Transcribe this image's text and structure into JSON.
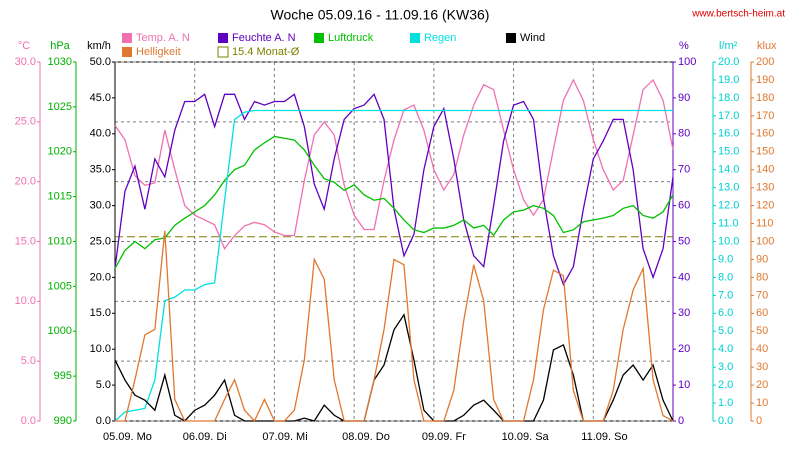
{
  "chart_data": {
    "type": "line",
    "title": "Woche 05.09.16 - 11.09.16 (KW36)",
    "source": "www.bertsch-heim.at",
    "grid": true,
    "x": [
      0,
      3,
      6,
      9,
      12,
      15,
      18,
      21,
      24,
      27,
      30,
      33,
      36,
      39,
      42,
      45,
      48,
      51,
      54,
      57,
      60,
      63,
      66,
      69,
      72,
      75,
      78,
      81,
      84,
      87,
      90,
      93,
      96,
      99,
      102,
      105,
      108,
      111,
      114,
      117,
      120,
      123,
      126,
      129,
      132,
      135,
      138,
      141,
      144,
      147,
      150,
      153,
      156,
      159,
      162,
      165,
      168
    ],
    "xlim": [
      0,
      168
    ],
    "xticks": [
      {
        "value": 0,
        "label": "05.09.  Mo"
      },
      {
        "value": 24,
        "label": "06.09.  Di"
      },
      {
        "value": 48,
        "label": "07.09.  Mi"
      },
      {
        "value": 72,
        "label": "08.09.  Do"
      },
      {
        "value": 96,
        "label": "09.09.  Fr"
      },
      {
        "value": 120,
        "label": "10.09.  Sa"
      },
      {
        "value": 144,
        "label": "11.09.  So"
      }
    ],
    "axes": [
      {
        "label": "°C",
        "color": "#f070b0",
        "side": "left",
        "lim": [
          0,
          30
        ],
        "ticks": [
          {
            "value": 0,
            "label": "0.0"
          },
          {
            "value": 5,
            "label": "5.0"
          },
          {
            "value": 10,
            "label": "10.0"
          },
          {
            "value": 15,
            "label": "15.0"
          },
          {
            "value": 20,
            "label": "20.0"
          },
          {
            "value": 25,
            "label": "25.0"
          },
          {
            "value": 30,
            "label": "30.0"
          }
        ]
      },
      {
        "label": "hPa",
        "color": "#00b000",
        "side": "left",
        "lim": [
          990,
          1030
        ],
        "ticks": [
          990,
          995,
          1000,
          1005,
          1010,
          1015,
          1020,
          1025,
          1030
        ]
      },
      {
        "label": "km/h",
        "color": "#000000",
        "side": "left",
        "lim": [
          0,
          50
        ],
        "ticks": [
          {
            "value": 0,
            "label": "0.0"
          },
          {
            "value": 5,
            "label": "5.0"
          },
          {
            "value": 10,
            "label": "10.0"
          },
          {
            "value": 15,
            "label": "15.0"
          },
          {
            "value": 20,
            "label": "20.0"
          },
          {
            "value": 25,
            "label": "25.0"
          },
          {
            "value": 30,
            "label": "30.0"
          },
          {
            "value": 35,
            "label": "35.0"
          },
          {
            "value": 40,
            "label": "40.0"
          },
          {
            "value": 45,
            "label": "45.0"
          },
          {
            "value": 50,
            "label": "50.0"
          }
        ]
      },
      {
        "label": "%",
        "color": "#6000c0",
        "side": "right",
        "lim": [
          0,
          100
        ],
        "ticks": [
          0,
          10,
          20,
          30,
          40,
          50,
          60,
          70,
          80,
          90,
          100
        ]
      },
      {
        "label": "l/m²",
        "color": "#00d0d0",
        "side": "right",
        "lim": [
          0,
          20
        ],
        "ticks": [
          {
            "value": 0,
            "label": "0.0"
          },
          {
            "value": 1,
            "label": "1.0"
          },
          {
            "value": 2,
            "label": "2.0"
          },
          {
            "value": 3,
            "label": "3.0"
          },
          {
            "value": 4,
            "label": "4.0"
          },
          {
            "value": 5,
            "label": "5.0"
          },
          {
            "value": 6,
            "label": "6.0"
          },
          {
            "value": 7,
            "label": "7.0"
          },
          {
            "value": 8,
            "label": "8.0"
          },
          {
            "value": 9,
            "label": "9.0"
          },
          {
            "value": 10,
            "label": "10.0"
          },
          {
            "value": 11,
            "label": "11.0"
          },
          {
            "value": 12,
            "label": "12.0"
          },
          {
            "value": 13,
            "label": "13.0"
          },
          {
            "value": 14,
            "label": "14.0"
          },
          {
            "value": 15,
            "label": "15.0"
          },
          {
            "value": 16,
            "label": "16.0"
          },
          {
            "value": 17,
            "label": "17.0"
          },
          {
            "value": 18,
            "label": "18.0"
          },
          {
            "value": 19,
            "label": "19.0"
          },
          {
            "value": 20,
            "label": "20.0"
          }
        ]
      },
      {
        "label": "klux",
        "color": "#e07830",
        "side": "right",
        "lim": [
          0,
          200
        ],
        "ticks": [
          0,
          10,
          20,
          30,
          40,
          50,
          60,
          70,
          80,
          90,
          100,
          110,
          120,
          130,
          140,
          150,
          160,
          170,
          180,
          190,
          200
        ]
      }
    ],
    "series": [
      {
        "name": "Temp. A. N",
        "color": "#f070b0",
        "axis": "°C",
        "values": [
          24.7,
          23.5,
          20.5,
          19.7,
          19.9,
          24.3,
          21,
          18,
          17.2,
          16.8,
          16.4,
          14.4,
          15.5,
          16.3,
          16.6,
          16.4,
          15.8,
          15.5,
          15.5,
          20.1,
          23.9,
          25,
          23.9,
          19.7,
          17.2,
          16,
          16,
          20.1,
          23.5,
          26,
          26.4,
          24.3,
          21,
          19.3,
          20.6,
          23.9,
          26.4,
          28.1,
          27.7,
          24.3,
          21,
          18.5,
          17.2,
          18.5,
          22.7,
          26.8,
          28.5,
          26.8,
          23.5,
          21,
          19.3,
          20.1,
          23.9,
          27.7,
          28.5,
          26.8,
          22.7
        ]
      },
      {
        "name": "Feuchte A. N",
        "color": "#6000c0",
        "axis": "%",
        "values": [
          42.6,
          64,
          71,
          59,
          73,
          68,
          81,
          89,
          89,
          91,
          82,
          91,
          91,
          84,
          89,
          88,
          89,
          89,
          91,
          82,
          66,
          59,
          73,
          84,
          87,
          88,
          91,
          84,
          59,
          46,
          52,
          70,
          82,
          87,
          73,
          56,
          46,
          43,
          60,
          78,
          88,
          89,
          84,
          62,
          46,
          38,
          43,
          59,
          73,
          78,
          84,
          84,
          70,
          48,
          40,
          48,
          68
        ]
      },
      {
        "name": "Luftdruck",
        "color": "#00c000",
        "axis": "hPa",
        "values": [
          1007,
          1009,
          1010,
          1009.2,
          1010.2,
          1010.4,
          1011.8,
          1012.6,
          1013.3,
          1014,
          1015.2,
          1016.8,
          1018,
          1018.5,
          1020.2,
          1021,
          1021.7,
          1021.5,
          1021.3,
          1020.2,
          1018.5,
          1017,
          1016.6,
          1015.7,
          1016.3,
          1015.2,
          1014.6,
          1014.8,
          1013.7,
          1012.4,
          1011.3,
          1011,
          1011.5,
          1011.5,
          1011.8,
          1012.4,
          1011.5,
          1011.8,
          1010.7,
          1012.4,
          1013.3,
          1013.5,
          1014,
          1013.7,
          1012.9,
          1011,
          1011.3,
          1012.2,
          1012.4,
          1012.6,
          1012.9,
          1013.7,
          1014,
          1012.9,
          1012.6,
          1013.3,
          1015.2
        ]
      },
      {
        "name": "Regen",
        "color": "#00e0e0",
        "axis": "l/m²",
        "values": [
          0,
          0.5,
          0.6,
          0.7,
          2.3,
          6.7,
          6.9,
          7.3,
          7.3,
          7.6,
          7.7,
          12.3,
          16.8,
          17.2,
          17.3,
          17.3,
          17.3,
          17.3,
          17.3,
          17.3,
          17.3,
          17.3,
          17.3,
          17.3,
          17.3,
          17.3,
          17.3,
          17.3,
          17.3,
          17.3,
          17.3,
          17.3,
          17.3,
          17.3,
          17.3,
          17.3,
          17.3,
          17.3,
          17.3,
          17.3,
          17.3,
          17.3,
          17.3,
          17.3,
          17.3,
          17.3,
          17.3,
          17.3,
          17.3,
          17.3,
          17.3,
          17.3,
          17.3,
          17.3,
          17.3,
          17.3,
          17.3
        ]
      },
      {
        "name": "Wind",
        "color": "#000000",
        "axis": "km/h",
        "values": [
          8.5,
          5.7,
          3.6,
          2.9,
          1.5,
          6.4,
          0.8,
          0,
          1.5,
          2.2,
          3.6,
          5.7,
          0.8,
          0,
          0,
          0,
          0,
          0,
          0,
          0.4,
          0,
          2.2,
          0.8,
          0,
          0,
          0,
          5.7,
          7.8,
          12.7,
          14.8,
          8.5,
          1.5,
          0,
          0,
          0,
          0.8,
          2.2,
          2.9,
          1.5,
          0,
          0,
          0,
          0,
          2.9,
          9.9,
          10.6,
          6.4,
          0,
          0,
          0,
          2.9,
          6.4,
          7.8,
          5.7,
          7.8,
          2.9,
          0
        ]
      },
      {
        "name": "Helligkeit",
        "color": "#e07830",
        "axis": "klux",
        "values": [
          0,
          0,
          23,
          48,
          51,
          106,
          12,
          0,
          0,
          0,
          0,
          12,
          23,
          6,
          0,
          12,
          0,
          0,
          6,
          34,
          90,
          79,
          23,
          0,
          0,
          0,
          23,
          51,
          90,
          87,
          23,
          0,
          0,
          0,
          17,
          56,
          87,
          67,
          12,
          0,
          0,
          0,
          23,
          62,
          84,
          81,
          17,
          0,
          0,
          0,
          17,
          51,
          73,
          85,
          23,
          3,
          0
        ]
      }
    ],
    "reference_line": {
      "name": "15.4 Monat-Ø",
      "value": 15.4,
      "axis": "°C",
      "color": "#808000"
    }
  }
}
